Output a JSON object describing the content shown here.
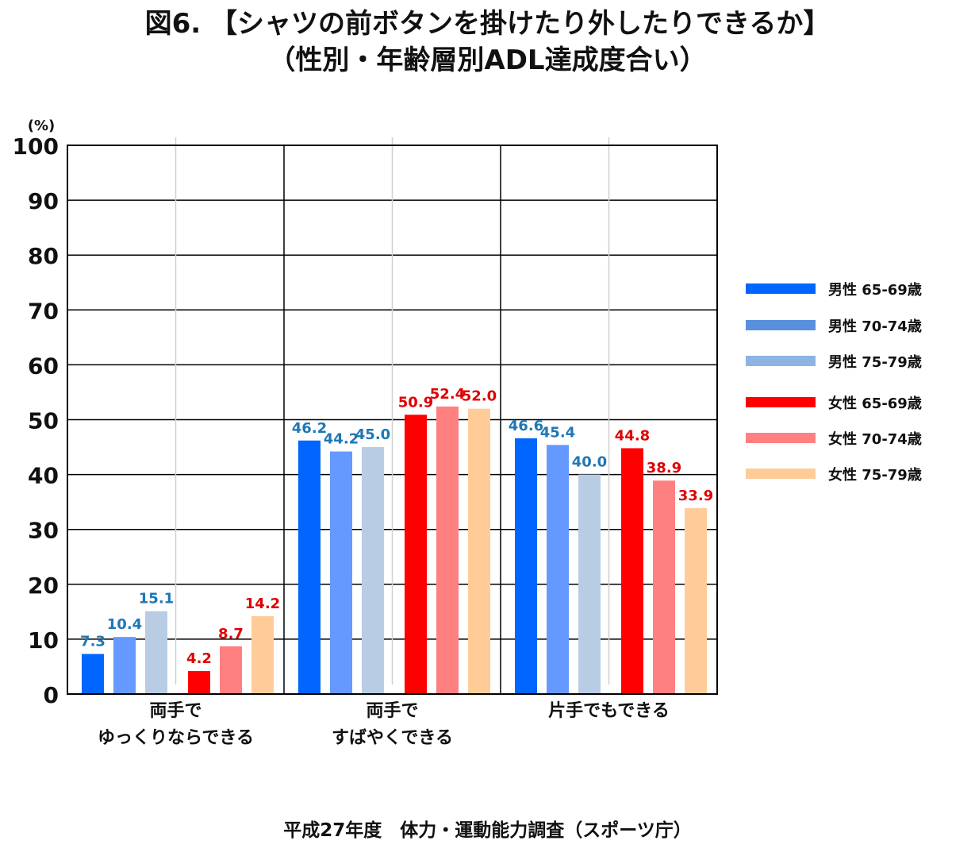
{
  "title_line1": "図6. 【シャツの前ボタンを掛けたり外したりできるか】",
  "title_line2": "（性別・年齢層別ADL達成度合い）",
  "source": "平成27年度　体力・運動能力調査（スポーツ庁）",
  "chart_data": {
    "type": "bar",
    "unit_label": "(%)",
    "ylim": [
      0,
      100
    ],
    "yticks": [
      0,
      10,
      20,
      30,
      40,
      50,
      60,
      70,
      80,
      90,
      100
    ],
    "grid": true,
    "legend_position": "right",
    "categories": [
      [
        "両手で",
        "ゆっくりならできる"
      ],
      [
        "両手で",
        "すばやくできる"
      ],
      [
        "片手でもできる"
      ]
    ],
    "series": [
      {
        "name": "男性 65-69歳",
        "color": "#0066FF",
        "label_color": "#1F77B4",
        "values": [
          7.3,
          46.2,
          46.6
        ]
      },
      {
        "name": "男性 70-74歳",
        "color": "#6699FF",
        "label_color": "#1F77B4",
        "values": [
          10.4,
          44.2,
          45.4
        ]
      },
      {
        "name": "男性 75-79歳",
        "color": "#B8CCE4",
        "label_color": "#1F77B4",
        "values": [
          15.1,
          45.0,
          40.0
        ]
      },
      {
        "name": "女性 65-69歳",
        "color": "#FF0000",
        "label_color": "#E00000",
        "values": [
          4.2,
          50.9,
          44.8
        ]
      },
      {
        "name": "女性 70-74歳",
        "color": "#FF8080",
        "label_color": "#E00000",
        "values": [
          8.7,
          52.4,
          38.9
        ]
      },
      {
        "name": "女性 75-79歳",
        "color": "#FFCC99",
        "label_color": "#E00000",
        "values": [
          14.2,
          52.0,
          33.9
        ]
      }
    ],
    "legend_swatch_colors": [
      "#0066FF",
      "#5A8FDD",
      "#8DB4E2",
      "#FF0000",
      "#FF8080",
      "#FFCC99"
    ]
  }
}
